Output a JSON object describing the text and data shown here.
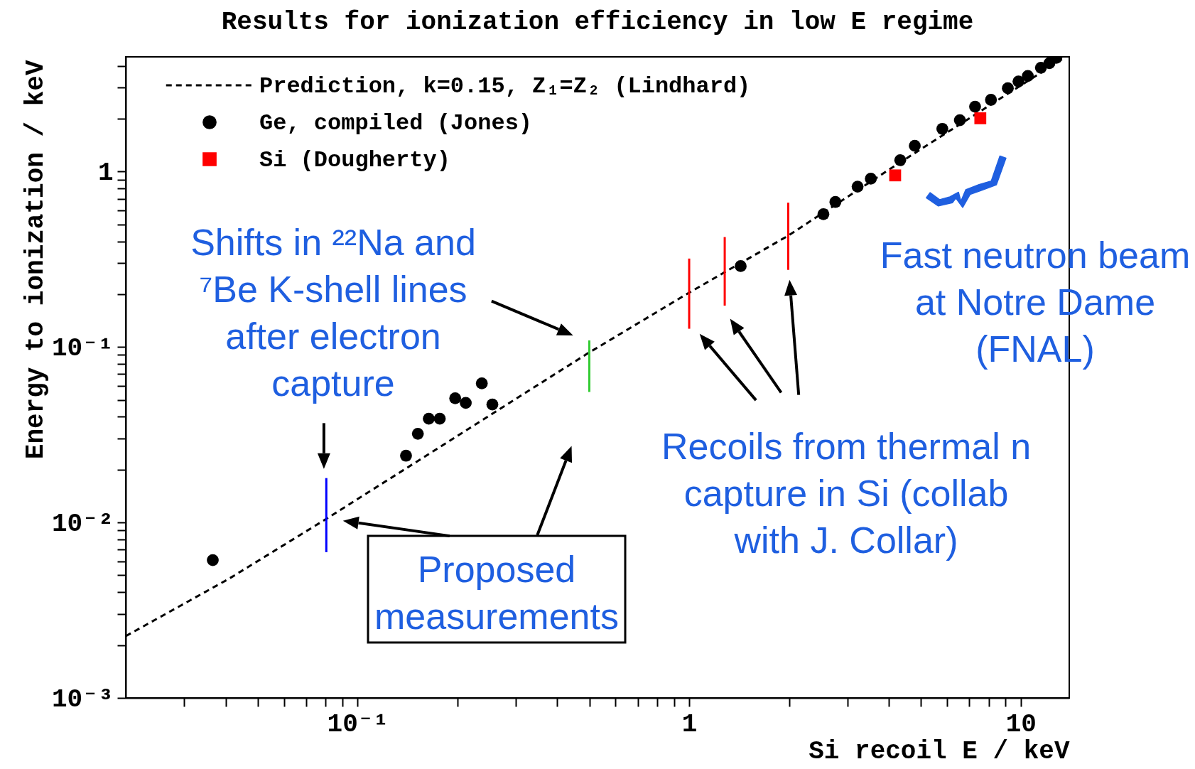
{
  "chart_data": {
    "type": "scatter",
    "title": "Results for ionization efficiency in low E regime",
    "xlabel": "Si recoil E / keV",
    "ylabel": "Energy to ionization / keV",
    "log": "xy",
    "grid": false,
    "legend": "top left",
    "xlim": [
      0.02,
      14
    ],
    "ylim": [
      0.001,
      4.5
    ],
    "xticks": [
      {
        "value": 0.03,
        "label": null
      },
      {
        "value": 0.04,
        "label": null
      },
      {
        "value": 0.05,
        "label": null
      },
      {
        "value": 0.06,
        "label": null
      },
      {
        "value": 0.07,
        "label": null
      },
      {
        "value": 0.08,
        "label": null
      },
      {
        "value": 0.09,
        "label": null
      },
      {
        "value": 0.1,
        "label": "10⁻¹"
      },
      {
        "value": 0.2,
        "label": null
      },
      {
        "value": 0.3,
        "label": null
      },
      {
        "value": 0.4,
        "label": null
      },
      {
        "value": 0.5,
        "label": null
      },
      {
        "value": 0.6,
        "label": null
      },
      {
        "value": 0.7,
        "label": null
      },
      {
        "value": 0.8,
        "label": null
      },
      {
        "value": 0.9,
        "label": null
      },
      1,
      {
        "value": 2,
        "label": null
      },
      {
        "value": 3,
        "label": null
      },
      {
        "value": 4,
        "label": null
      },
      {
        "value": 5,
        "label": null
      },
      {
        "value": 6,
        "label": null
      },
      {
        "value": 7,
        "label": null
      },
      {
        "value": 8,
        "label": null
      },
      {
        "value": 9,
        "label": null
      },
      10
    ],
    "yticks": [
      {
        "value": 0.001,
        "label": "10⁻³"
      },
      {
        "value": 0.002,
        "label": null
      },
      {
        "value": 0.003,
        "label": null
      },
      {
        "value": 0.004,
        "label": null
      },
      {
        "value": 0.005,
        "label": null
      },
      {
        "value": 0.006,
        "label": null
      },
      {
        "value": 0.007,
        "label": null
      },
      {
        "value": 0.008,
        "label": null
      },
      {
        "value": 0.009,
        "label": null
      },
      {
        "value": 0.01,
        "label": "10⁻²"
      },
      {
        "value": 0.02,
        "label": null
      },
      {
        "value": 0.03,
        "label": null
      },
      {
        "value": 0.04,
        "label": null
      },
      {
        "value": 0.05,
        "label": null
      },
      {
        "value": 0.06,
        "label": null
      },
      {
        "value": 0.07,
        "label": null
      },
      {
        "value": 0.08,
        "label": null
      },
      {
        "value": 0.09,
        "label": null
      },
      {
        "value": 0.1,
        "label": "10⁻¹"
      },
      {
        "value": 0.2,
        "label": null
      },
      {
        "value": 0.3,
        "label": null
      },
      {
        "value": 0.4,
        "label": null
      },
      {
        "value": 0.5,
        "label": null
      },
      {
        "value": 0.6,
        "label": null
      },
      {
        "value": 0.7,
        "label": null
      },
      {
        "value": 0.8,
        "label": null
      },
      {
        "value": 0.9,
        "label": null
      },
      1,
      {
        "value": 2,
        "label": null
      },
      {
        "value": 3,
        "label": null
      },
      {
        "value": 4,
        "label": null
      }
    ],
    "series": [
      {
        "name": "Prediction, k=0.15, Z₁=Z₂ (Lindhard)",
        "type": "line",
        "line_style": "dashed",
        "color": "#000000",
        "x": [
          0.02,
          0.0409,
          0.0813,
          0.492,
          1,
          1.99,
          4.18,
          13.4
        ],
        "values": [
          0.00225,
          0.00477,
          0.0106,
          0.0914,
          0.204,
          0.431,
          1.08,
          4.4
        ]
      },
      {
        "name": "Ge, compiled (Jones)",
        "marker": "circle",
        "color": "#000000",
        "x": [
          0.0366,
          0.14,
          0.152,
          0.164,
          0.177,
          0.197,
          0.212,
          0.237,
          0.255,
          1.43,
          2.54,
          2.76,
          3.22,
          3.53,
          4.33,
          4.79,
          5.8,
          6.55,
          7.28,
          8.13,
          9.14,
          9.84,
          10.5,
          11.5,
          12.2,
          12.8
        ],
        "values": [
          0.0061,
          0.024,
          0.032,
          0.039,
          0.039,
          0.051,
          0.048,
          0.062,
          0.047,
          0.289,
          0.571,
          0.67,
          0.82,
          0.91,
          1.16,
          1.4,
          1.75,
          1.96,
          2.34,
          2.56,
          2.98,
          3.26,
          3.5,
          3.9,
          4.14,
          4.44
        ]
      },
      {
        "name": "Si (Dougherty)",
        "marker": "square",
        "color": "#ff0000",
        "x": [
          4.18,
          7.55
        ],
        "values": [
          0.95,
          2.01
        ]
      },
      {
        "type": "line",
        "line_style": "solid",
        "color": "#0000ff",
        "x": [
          0.0805,
          0.0805
        ],
        "values": [
          0.00677,
          0.0179
        ]
      },
      {
        "type": "line",
        "line_style": "solid",
        "color": "#33cc33",
        "x": [
          0.5,
          0.5
        ],
        "values": [
          0.0554,
          0.109
        ]
      },
      {
        "type": "line",
        "line_style": "solid",
        "color": "#ff0000",
        "x": [
          1,
          1
        ],
        "values": [
          0.127,
          0.319
        ]
      },
      {
        "type": "line",
        "line_style": "solid",
        "color": "#ff0000",
        "x": [
          1.28,
          1.28
        ],
        "values": [
          0.172,
          0.423
        ]
      },
      {
        "type": "line",
        "line_style": "solid",
        "color": "#ff0000",
        "x": [
          1.99,
          1.99
        ],
        "values": [
          0.275,
          0.664
        ]
      }
    ],
    "annotations": [
      "Shifts in ²²Na and ⁷Be K-shell lines after electron capture",
      "Proposed measurements",
      "Recoils from thermal n capture in Si (collab with J. Collar)",
      "Fast neutron beam at Notre Dame (FNAL)"
    ]
  }
}
